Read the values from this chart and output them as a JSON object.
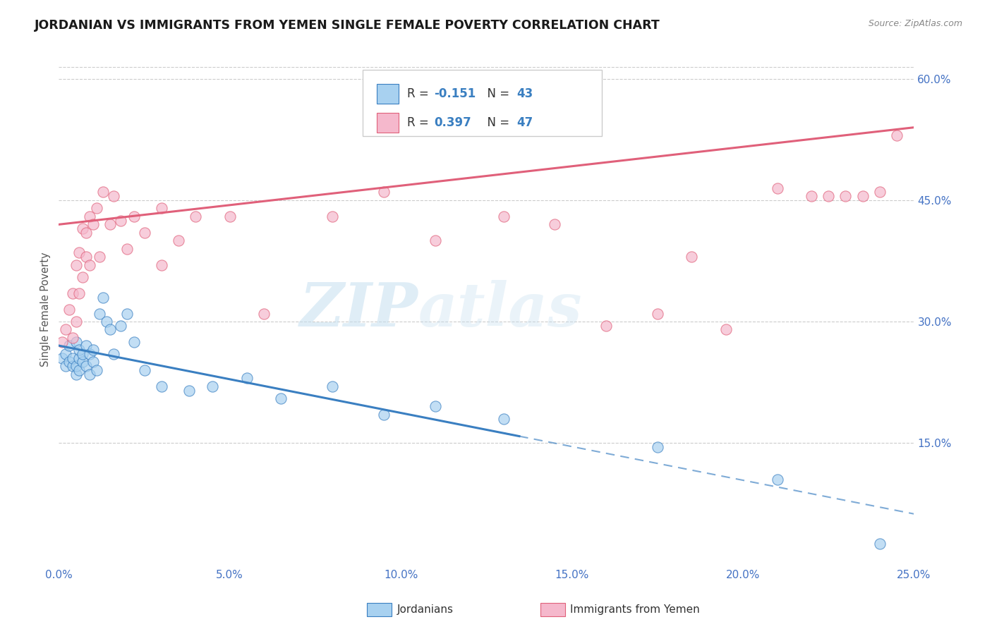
{
  "title": "JORDANIAN VS IMMIGRANTS FROM YEMEN SINGLE FEMALE POVERTY CORRELATION CHART",
  "source": "Source: ZipAtlas.com",
  "ylabel": "Single Female Poverty",
  "legend_label1": "Jordanians",
  "legend_label2": "Immigrants from Yemen",
  "r1": -0.151,
  "n1": 43,
  "r2": 0.397,
  "n2": 47,
  "xlim": [
    0.0,
    0.25
  ],
  "ylim": [
    0.0,
    0.63
  ],
  "xticks": [
    0.0,
    0.05,
    0.1,
    0.15,
    0.2,
    0.25
  ],
  "yticks_right": [
    0.15,
    0.3,
    0.45,
    0.6
  ],
  "color_blue": "#a8d1f0",
  "color_pink": "#f5b8cc",
  "line_color_blue": "#3a7fc1",
  "line_color_pink": "#e0607a",
  "background_color": "#ffffff",
  "watermark_zip": "ZIP",
  "watermark_atlas": "atlas",
  "blue_line_solid_end": 0.13,
  "jordanians_x": [
    0.001,
    0.002,
    0.002,
    0.003,
    0.003,
    0.004,
    0.004,
    0.005,
    0.005,
    0.005,
    0.006,
    0.006,
    0.006,
    0.007,
    0.007,
    0.008,
    0.008,
    0.009,
    0.009,
    0.01,
    0.01,
    0.011,
    0.012,
    0.013,
    0.014,
    0.015,
    0.016,
    0.018,
    0.02,
    0.022,
    0.025,
    0.03,
    0.038,
    0.045,
    0.055,
    0.065,
    0.08,
    0.095,
    0.11,
    0.13,
    0.175,
    0.21,
    0.24
  ],
  "jordanians_y": [
    0.255,
    0.245,
    0.26,
    0.25,
    0.27,
    0.245,
    0.255,
    0.235,
    0.245,
    0.275,
    0.24,
    0.255,
    0.265,
    0.25,
    0.26,
    0.245,
    0.27,
    0.26,
    0.235,
    0.265,
    0.25,
    0.24,
    0.31,
    0.33,
    0.3,
    0.29,
    0.26,
    0.295,
    0.31,
    0.275,
    0.24,
    0.22,
    0.215,
    0.22,
    0.23,
    0.205,
    0.22,
    0.185,
    0.195,
    0.18,
    0.145,
    0.105,
    0.025
  ],
  "yemen_x": [
    0.001,
    0.002,
    0.003,
    0.004,
    0.004,
    0.005,
    0.005,
    0.006,
    0.006,
    0.007,
    0.007,
    0.008,
    0.008,
    0.009,
    0.009,
    0.01,
    0.011,
    0.012,
    0.013,
    0.015,
    0.016,
    0.018,
    0.02,
    0.022,
    0.025,
    0.03,
    0.03,
    0.035,
    0.04,
    0.05,
    0.06,
    0.08,
    0.095,
    0.11,
    0.13,
    0.145,
    0.16,
    0.175,
    0.185,
    0.195,
    0.21,
    0.22,
    0.225,
    0.23,
    0.235,
    0.24,
    0.245
  ],
  "yemen_y": [
    0.275,
    0.29,
    0.315,
    0.28,
    0.335,
    0.3,
    0.37,
    0.335,
    0.385,
    0.355,
    0.415,
    0.38,
    0.41,
    0.37,
    0.43,
    0.42,
    0.44,
    0.38,
    0.46,
    0.42,
    0.455,
    0.425,
    0.39,
    0.43,
    0.41,
    0.37,
    0.44,
    0.4,
    0.43,
    0.43,
    0.31,
    0.43,
    0.46,
    0.4,
    0.43,
    0.42,
    0.295,
    0.31,
    0.38,
    0.29,
    0.465,
    0.455,
    0.455,
    0.455,
    0.455,
    0.46,
    0.53
  ]
}
